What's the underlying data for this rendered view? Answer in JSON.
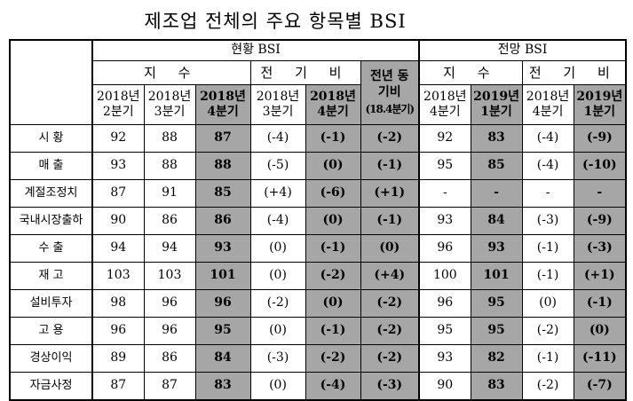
{
  "title": "제조업 전체의 주요 항목별 BSI",
  "groups": {
    "current": "현황 BSI",
    "outlook": "전망 BSI"
  },
  "subgroups": {
    "index": "지 수",
    "prev_cur": "전 기 비",
    "yoy": "전년 동기비",
    "index_out": "지 수",
    "prev_out": "전 기 비"
  },
  "yoy_period": "(18.4분기)",
  "columns": {
    "c1": [
      "2018년",
      "2분기"
    ],
    "c2": [
      "2018년",
      "3분기"
    ],
    "c3": [
      "2018년",
      "4분기"
    ],
    "c4": [
      "2018년",
      "3분기"
    ],
    "c5": [
      "2018년",
      "4분기"
    ],
    "c7": [
      "2018년",
      "4분기"
    ],
    "c8": [
      "2019년",
      "1분기"
    ],
    "c9": [
      "2018년",
      "4분기"
    ],
    "c10": [
      "2019년",
      "1분기"
    ]
  },
  "rows": [
    {
      "label": "시 황",
      "v": [
        "92",
        "88",
        "87",
        "(-4)",
        "(-1)",
        "(-2)",
        "92",
        "83",
        "(-4)",
        "(-9)"
      ]
    },
    {
      "label": "매 출",
      "v": [
        "93",
        "88",
        "88",
        "(-5)",
        "(0)",
        "(-1)",
        "95",
        "85",
        "(-4)",
        "(-10)"
      ]
    },
    {
      "label": "계절조정치",
      "v": [
        "87",
        "91",
        "85",
        "(+4)",
        "(-6)",
        "(+1)",
        "-",
        "-",
        "-",
        "-"
      ]
    },
    {
      "label": "국내시장출하",
      "v": [
        "90",
        "86",
        "86",
        "(-4)",
        "(0)",
        "(-1)",
        "93",
        "84",
        "(-3)",
        "(-9)"
      ]
    },
    {
      "label": "수 출",
      "v": [
        "94",
        "94",
        "93",
        "(0)",
        "(-1)",
        "(0)",
        "96",
        "93",
        "(-1)",
        "(-3)"
      ]
    },
    {
      "label": "재 고",
      "v": [
        "103",
        "103",
        "101",
        "(0)",
        "(-2)",
        "(+4)",
        "100",
        "101",
        "(-1)",
        "(+1)"
      ]
    },
    {
      "label": "설비투자",
      "v": [
        "98",
        "96",
        "96",
        "(-2)",
        "(0)",
        "(-2)",
        "96",
        "95",
        "(0)",
        "(-1)"
      ]
    },
    {
      "label": "고 용",
      "v": [
        "96",
        "96",
        "95",
        "(0)",
        "(-1)",
        "(-2)",
        "95",
        "95",
        "(-2)",
        "(0)"
      ]
    },
    {
      "label": "경상이익",
      "v": [
        "89",
        "86",
        "84",
        "(-3)",
        "(-2)",
        "(-2)",
        "93",
        "82",
        "(-1)",
        "(-11)"
      ]
    },
    {
      "label": "자금사정",
      "v": [
        "87",
        "87",
        "83",
        "(0)",
        "(-4)",
        "(-3)",
        "90",
        "83",
        "(-2)",
        "(-7)"
      ]
    }
  ]
}
